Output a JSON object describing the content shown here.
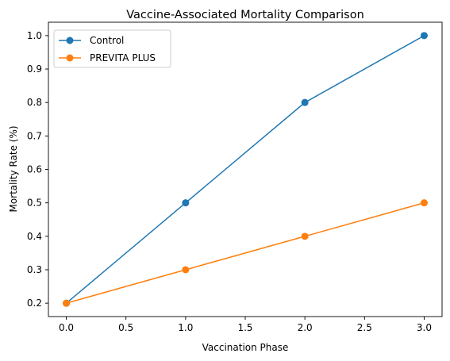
{
  "chart_data": {
    "type": "line",
    "title": "Vaccine-Associated Mortality Comparison",
    "xlabel": "Vaccination Phase",
    "ylabel": "Mortality Rate (%)",
    "x": [
      0,
      1,
      2,
      3
    ],
    "xlim": [
      -0.15,
      3.15
    ],
    "ylim": [
      0.16,
      1.04
    ],
    "xticks": [
      0,
      0.5,
      1,
      1.5,
      2,
      2.5,
      3
    ],
    "xtick_labels": [
      "0.0",
      "0.5",
      "1.0",
      "1.5",
      "2.0",
      "2.5",
      "3.0"
    ],
    "yticks": [
      0.2,
      0.3,
      0.4,
      0.5,
      0.6,
      0.7,
      0.8,
      0.9,
      1.0
    ],
    "ytick_labels": [
      "0.2",
      "0.3",
      "0.4",
      "0.5",
      "0.6",
      "0.7",
      "0.8",
      "0.9",
      "1.0"
    ],
    "grid": false,
    "legend_position": "top-left",
    "series": [
      {
        "name": "Control",
        "color": "#1f77b4",
        "values": [
          0.2,
          0.5,
          0.8,
          1.0
        ]
      },
      {
        "name": "PREVITA PLUS",
        "color": "#ff7f0e",
        "values": [
          0.2,
          0.3,
          0.4,
          0.5
        ]
      }
    ]
  }
}
